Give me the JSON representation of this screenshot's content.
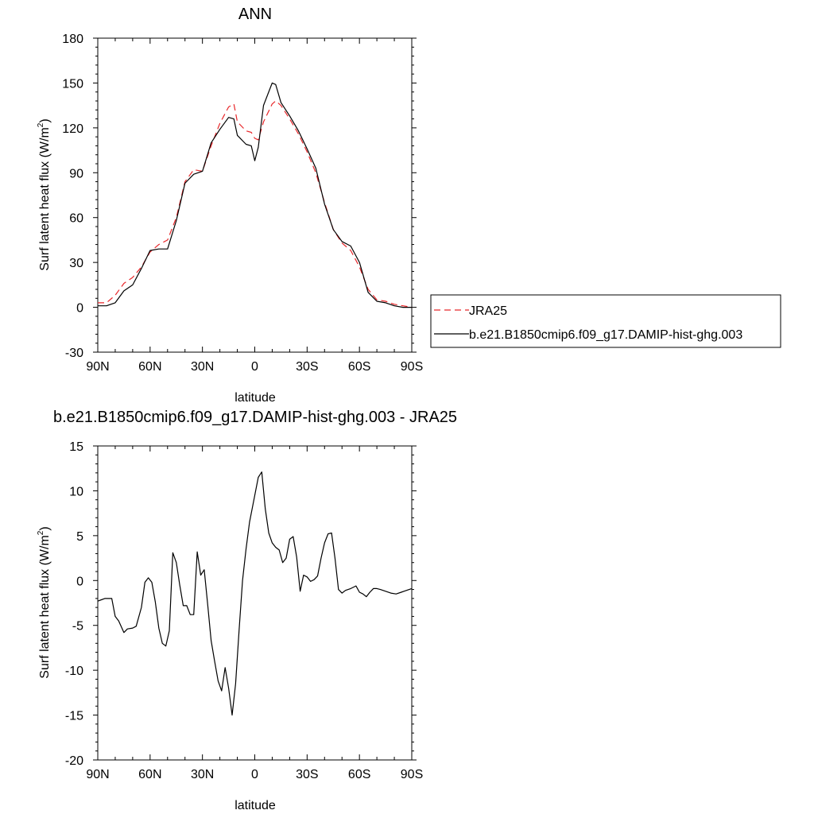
{
  "chart_data": [
    {
      "type": "line",
      "title": "ANN",
      "xlabel": "latitude",
      "ylabel": "Surf latent heat flux (W/m",
      "ylabel_sup": "2",
      "ylabel_close": ")",
      "xlim": [
        90,
        -90
      ],
      "ylim": [
        -30,
        180
      ],
      "x_ticks": [
        90,
        60,
        30,
        0,
        -30,
        -60,
        -90
      ],
      "x_tick_labels": [
        "90N",
        "60N",
        "30N",
        "0",
        "30S",
        "60S",
        "90S"
      ],
      "y_ticks": [
        -30,
        0,
        30,
        60,
        90,
        120,
        150,
        180
      ],
      "y_tick_labels": [
        "-30",
        "0",
        "30",
        "60",
        "90",
        "120",
        "150",
        "180"
      ],
      "legend_placement": "right",
      "series": [
        {
          "name": "JRA25",
          "color": "#e8272a",
          "dash": "dashed",
          "x": [
            90,
            85,
            80,
            75,
            70,
            65,
            60,
            55,
            50,
            45,
            40,
            35,
            30,
            25,
            20,
            15,
            12,
            10,
            5,
            2,
            0,
            -2,
            -5,
            -10,
            -12,
            -15,
            -20,
            -25,
            -30,
            -35,
            -40,
            -45,
            -50,
            -55,
            -60,
            -65,
            -70,
            -75,
            -80,
            -85,
            -90
          ],
          "values": [
            3,
            3,
            8,
            16,
            20,
            27,
            37,
            42,
            45,
            60,
            84,
            92,
            91,
            108,
            123,
            134,
            136,
            124,
            118,
            117,
            113,
            112,
            124,
            136,
            138,
            135,
            126,
            116,
            104,
            90,
            70,
            52,
            43,
            38,
            27,
            12,
            5,
            4,
            2,
            1,
            0
          ]
        },
        {
          "name": "b.e21.B1850cmip6.f09_g17.DAMIP-hist-ghg.003",
          "color": "#000000",
          "dash": "solid",
          "x": [
            90,
            85,
            80,
            75,
            70,
            65,
            60,
            55,
            50,
            45,
            40,
            35,
            30,
            25,
            20,
            15,
            12,
            10,
            5,
            2,
            0,
            -2,
            -5,
            -10,
            -12,
            -15,
            -20,
            -25,
            -30,
            -35,
            -40,
            -45,
            -50,
            -55,
            -60,
            -65,
            -70,
            -75,
            -80,
            -85,
            -90
          ],
          "values": [
            1,
            1,
            3,
            11,
            15,
            26,
            38,
            39,
            39,
            58,
            83,
            89,
            91,
            110,
            119,
            127,
            126,
            115,
            109,
            108,
            98,
            107,
            135,
            150,
            149,
            137,
            128,
            118,
            106,
            93,
            69,
            52,
            44,
            41,
            30,
            10,
            4,
            3,
            1,
            0,
            0
          ]
        }
      ]
    },
    {
      "type": "line",
      "title": "b.e21.B1850cmip6.f09_g17.DAMIP-hist-ghg.003 - JRA25",
      "xlabel": "latitude",
      "ylabel": "Surf latent heat flux (W/m",
      "ylabel_sup": "2",
      "ylabel_close": ")",
      "xlim": [
        90,
        -90
      ],
      "ylim": [
        -20,
        15
      ],
      "x_ticks": [
        90,
        60,
        30,
        0,
        -30,
        -60,
        -90
      ],
      "x_tick_labels": [
        "90N",
        "60N",
        "30N",
        "0",
        "30S",
        "60S",
        "90S"
      ],
      "y_ticks": [
        -20,
        -15,
        -10,
        -5,
        0,
        5,
        10,
        15
      ],
      "y_tick_labels": [
        "-20",
        "-15",
        "-10",
        "-5",
        "0",
        "5",
        "10",
        "15"
      ],
      "series": [
        {
          "name": "",
          "color": "#000000",
          "dash": "solid",
          "x": [
            90,
            86,
            82,
            80,
            78,
            75,
            73,
            70,
            68,
            65,
            63,
            61,
            59,
            57,
            55,
            53,
            51,
            49,
            47,
            45,
            43,
            41,
            39,
            37,
            35,
            33,
            31,
            29,
            27,
            25,
            23,
            21,
            19,
            17,
            15,
            13,
            11,
            9,
            7,
            5,
            3,
            1,
            0,
            -2,
            -4,
            -6,
            -8,
            -10,
            -12,
            -14,
            -16,
            -18,
            -20,
            -22,
            -24,
            -26,
            -28,
            -30,
            -32,
            -34,
            -36,
            -38,
            -40,
            -42,
            -44,
            -46,
            -48,
            -50,
            -52,
            -55,
            -58,
            -60,
            -62,
            -64,
            -66,
            -68,
            -70,
            -72,
            -75,
            -78,
            -81,
            -84,
            -87,
            -90
          ],
          "values": [
            -2.3,
            -2.0,
            -2.0,
            -4.0,
            -4.5,
            -5.8,
            -5.4,
            -5.3,
            -5.1,
            -3.0,
            -0.2,
            0.3,
            -0.2,
            -2.4,
            -5.3,
            -7.0,
            -7.3,
            -5.6,
            3.1,
            2.0,
            -0.5,
            -2.8,
            -2.8,
            -3.8,
            -3.8,
            3.2,
            0.6,
            1.2,
            -2.7,
            -6.7,
            -9.0,
            -11.2,
            -12.3,
            -9.7,
            -12.0,
            -15.0,
            -11.5,
            -5.5,
            0.0,
            3.5,
            6.5,
            8.5,
            9.5,
            11.5,
            12.1,
            8.0,
            5.3,
            4.2,
            3.7,
            3.4,
            2.0,
            2.5,
            4.6,
            4.9,
            2.6,
            -1.2,
            0.6,
            0.4,
            -0.1,
            0.1,
            0.5,
            2.5,
            4.2,
            5.2,
            5.3,
            2.5,
            -1.0,
            -1.4,
            -1.1,
            -0.9,
            -0.6,
            -1.3,
            -1.5,
            -1.8,
            -1.3,
            -0.9,
            -0.9,
            -1.0,
            -1.2,
            -1.4,
            -1.5,
            -1.3,
            -1.1,
            -0.9
          ]
        }
      ]
    }
  ]
}
